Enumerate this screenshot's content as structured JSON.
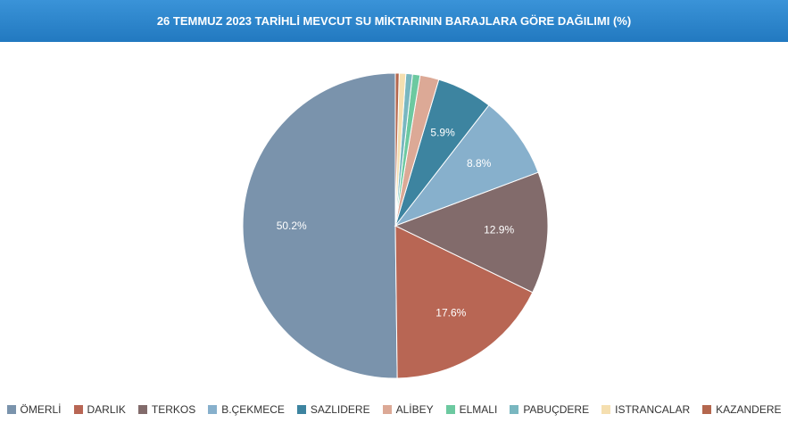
{
  "chart_data": {
    "type": "pie",
    "title": "26 TEMMUZ 2023 TARİHLİ MEVCUT SU MİKTARININ BARAJLARA GÖRE DAĞILIMI (%)",
    "categories": [
      "ÖMERLİ",
      "DARLIK",
      "TERKOS",
      "B.ÇEKMECE",
      "SAZLIDERE",
      "ALİBEY",
      "ELMALI",
      "PABUÇDERE",
      "ISTRANCALAR",
      "KAZANDERE"
    ],
    "values": [
      50.2,
      17.6,
      12.9,
      8.8,
      5.9,
      2.0,
      0.8,
      0.7,
      0.7,
      0.4
    ],
    "value_labels": [
      "50.2%",
      "17.6%",
      "12.9%",
      "8.8%",
      "5.9%",
      null,
      null,
      null,
      null,
      null
    ],
    "colors": [
      "#7a93ac",
      "#b86654",
      "#826b6b",
      "#87b0cc",
      "#3d84a0",
      "#dca996",
      "#6cc9a0",
      "#79b7c0",
      "#f5dfb0",
      "#b4674e"
    ],
    "legend": "bottom"
  }
}
